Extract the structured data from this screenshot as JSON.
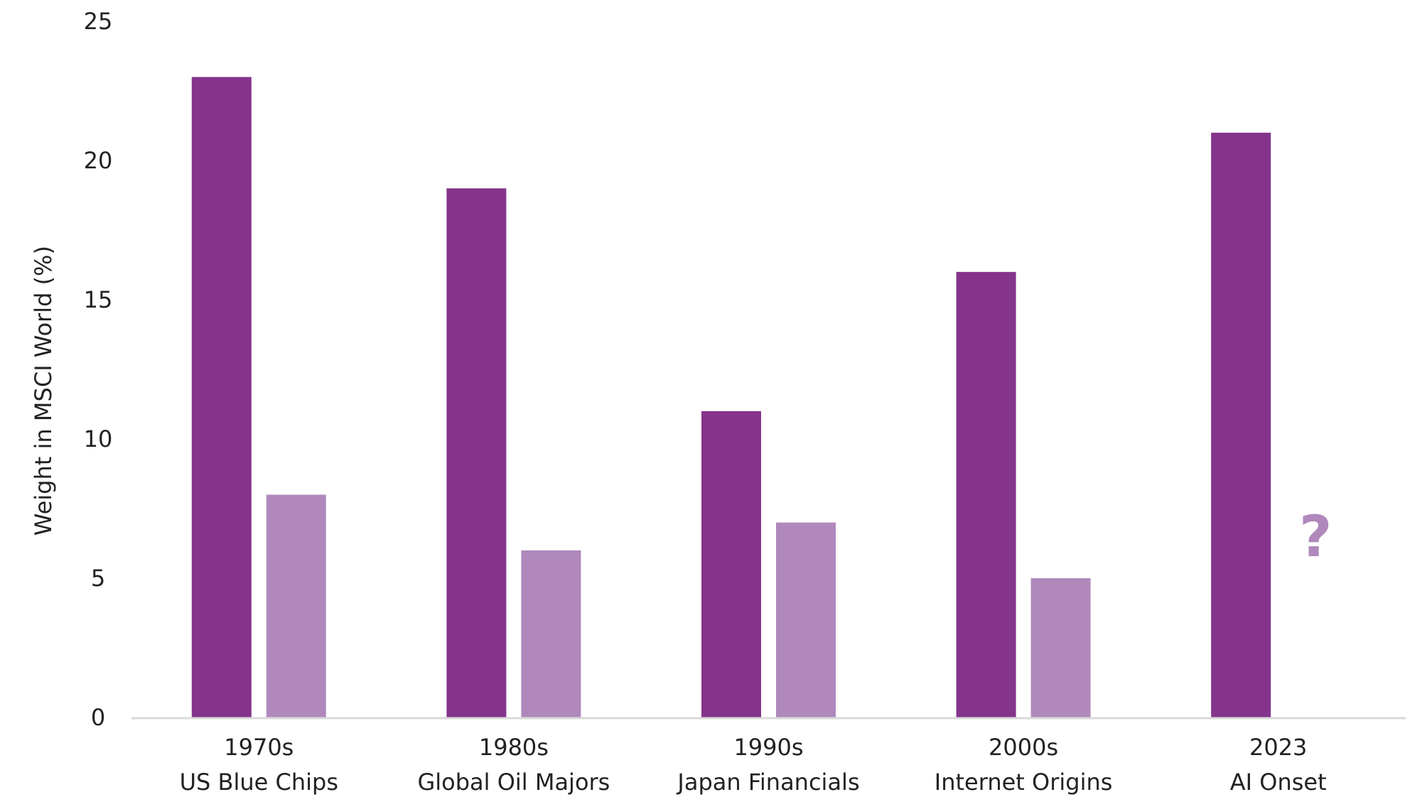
{
  "chart_data": {
    "type": "bar",
    "title": "",
    "xlabel": "",
    "ylabel": "Weight in MSCI World (%)",
    "ylim": [
      0,
      25
    ],
    "yticks": [
      0,
      5,
      10,
      15,
      20,
      25
    ],
    "grid": false,
    "legend": "none",
    "categories": [
      {
        "period": "1970s",
        "label": "US Blue Chips"
      },
      {
        "period": "1980s",
        "label": "Global Oil Majors"
      },
      {
        "period": "1990s",
        "label": "Japan Financials"
      },
      {
        "period": "2000s",
        "label": "Internet Origins"
      },
      {
        "period": "2023",
        "label": "AI Onset"
      }
    ],
    "series": [
      {
        "color": "#84348B",
        "values": [
          23,
          19,
          11,
          16,
          21
        ]
      },
      {
        "color": "#B088BC",
        "values": [
          8,
          6,
          7,
          5,
          null
        ]
      }
    ],
    "annotations": [
      {
        "text": "?",
        "category_index": 4,
        "series_index": 1,
        "y": 6.5,
        "color": "#B088BC"
      }
    ],
    "axis_color": "#D9D9D9"
  }
}
